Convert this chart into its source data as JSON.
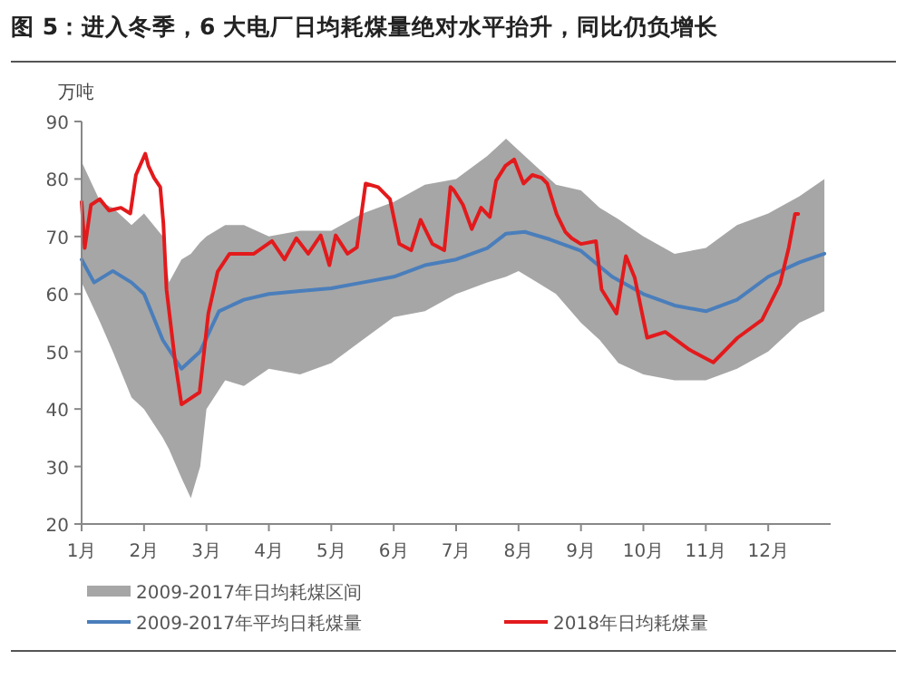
{
  "chart_data": {
    "type": "line",
    "title": "图 5：进入冬季，6 大电厂日均耗煤量绝对水平抬升，同比仍负增长",
    "ylabel": "万吨",
    "xlim": [
      1,
      13
    ],
    "xticks": [
      {
        "value": 1,
        "label": "1月"
      },
      {
        "value": 2,
        "label": "2月"
      },
      {
        "value": 3,
        "label": "3月"
      },
      {
        "value": 4,
        "label": "4月"
      },
      {
        "value": 5,
        "label": "5月"
      },
      {
        "value": 6,
        "label": "6月"
      },
      {
        "value": 7,
        "label": "7月"
      },
      {
        "value": 8,
        "label": "8月"
      },
      {
        "value": 9,
        "label": "9月"
      },
      {
        "value": 10,
        "label": "10月"
      },
      {
        "value": 11,
        "label": "11月"
      },
      {
        "value": 12,
        "label": "12月"
      }
    ],
    "ylim": [
      20,
      90
    ],
    "yticks": [
      20,
      30,
      40,
      50,
      60,
      70,
      80,
      90
    ],
    "legend": "bottom",
    "grid": false,
    "marker": "none",
    "line_style": "solid",
    "series": [
      {
        "name": "2009-2017年日均耗煤区间",
        "type": "area",
        "color": "#a6a6a6",
        "x": [
          1.0,
          1.3,
          1.5,
          1.8,
          2.0,
          2.3,
          2.4,
          2.6,
          2.75,
          2.9,
          3.0,
          3.3,
          3.6,
          4.0,
          4.5,
          5.0,
          5.5,
          6.0,
          6.5,
          7.0,
          7.5,
          7.8,
          8.0,
          8.3,
          8.6,
          9.0,
          9.3,
          9.6,
          10.0,
          10.5,
          11.0,
          11.5,
          12.0,
          12.5,
          12.9
        ],
        "upper": [
          83,
          76,
          75,
          72,
          74,
          70,
          62,
          66,
          67,
          69,
          70,
          72,
          72,
          70,
          71,
          71,
          74,
          76,
          79,
          80,
          84,
          87,
          85,
          82,
          79,
          78,
          75,
          73,
          70,
          67,
          68,
          72,
          74,
          77,
          80
        ],
        "lower": [
          62,
          55,
          50,
          42,
          40,
          35,
          33,
          28,
          24.5,
          30,
          40,
          45,
          44,
          47,
          46,
          48,
          52,
          56,
          57,
          60,
          62,
          63,
          64,
          62,
          60,
          55,
          52,
          48,
          46,
          45,
          45,
          47,
          50,
          55,
          57
        ],
        "values": [
          null,
          null,
          null,
          null,
          null,
          null,
          null,
          null,
          null,
          null,
          null,
          null,
          null,
          null,
          null,
          null,
          null,
          null,
          null,
          null,
          null,
          null,
          null,
          null,
          null,
          null,
          null,
          null,
          null,
          null,
          null,
          null,
          null,
          null,
          null
        ]
      },
      {
        "name": "2009-2017年平均日耗煤量",
        "color": "#4a7ebb",
        "x": [
          1.0,
          1.2,
          1.5,
          1.8,
          2.0,
          2.3,
          2.6,
          2.9,
          3.2,
          3.6,
          4.0,
          4.5,
          5.0,
          5.5,
          6.0,
          6.5,
          7.0,
          7.5,
          7.8,
          8.1,
          8.5,
          9.0,
          9.5,
          10.0,
          10.5,
          11.0,
          11.5,
          12.0,
          12.5,
          12.9
        ],
        "values": [
          66,
          62,
          64,
          62,
          60,
          52,
          47,
          50,
          57,
          59,
          60,
          60.5,
          61,
          62,
          63,
          65,
          66,
          68,
          70.5,
          70.8,
          69.5,
          67.5,
          63,
          60,
          58,
          57,
          59,
          63,
          65.5,
          67
        ]
      },
      {
        "name": "2018年日均耗煤量",
        "color": "#e31a1c",
        "x": [
          1.0,
          1.05,
          1.15,
          1.29,
          1.44,
          1.63,
          1.78,
          1.87,
          2.02,
          2.07,
          2.16,
          2.26,
          2.31,
          2.36,
          2.5,
          2.6,
          2.89,
          3.03,
          3.18,
          3.37,
          3.76,
          4.05,
          4.25,
          4.44,
          4.63,
          4.83,
          4.97,
          5.07,
          5.26,
          5.41,
          5.55,
          5.75,
          5.94,
          6.09,
          6.28,
          6.43,
          6.62,
          6.81,
          6.91,
          6.96,
          7.11,
          7.25,
          7.4,
          7.54,
          7.64,
          7.79,
          7.93,
          8.08,
          8.22,
          8.37,
          8.46,
          8.61,
          8.75,
          8.85,
          9.0,
          9.24,
          9.33,
          9.57,
          9.72,
          9.86,
          10.06,
          10.35,
          10.74,
          11.12,
          11.51,
          11.9,
          12.19,
          12.33,
          12.43,
          12.48
        ],
        "values": [
          76,
          68,
          75.5,
          76.5,
          74.5,
          75,
          74,
          80.7,
          84.4,
          82.3,
          80.2,
          78.6,
          72.3,
          60.8,
          48.1,
          40.8,
          42.9,
          56.6,
          63.9,
          67,
          67,
          69.2,
          66,
          69.7,
          67,
          70.2,
          65,
          70.2,
          67,
          68.1,
          79.2,
          78.6,
          76.5,
          68.7,
          67.6,
          72.9,
          68.7,
          67.6,
          78.6,
          78.1,
          75.5,
          71.3,
          75,
          73.4,
          79.7,
          82.3,
          83.4,
          79.2,
          80.7,
          80.2,
          79.2,
          73.9,
          70.8,
          69.7,
          68.7,
          69.2,
          60.8,
          56.6,
          66.6,
          62.9,
          52.4,
          53.4,
          50.3,
          48.1,
          52.4,
          55.5,
          61.8,
          68.1,
          73.9,
          73.9
        ]
      }
    ]
  }
}
